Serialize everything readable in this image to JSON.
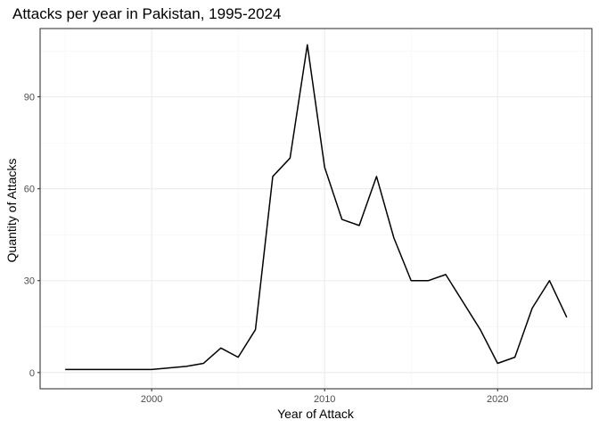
{
  "chart_data": {
    "type": "line",
    "title": "Attacks per year in Pakistan, 1995-2024",
    "xlabel": "Year of Attack",
    "ylabel": "Quantity of Attacks",
    "xlim": [
      1993.55,
      2025.45
    ],
    "ylim": [
      -5.3,
      112.3
    ],
    "x_ticks": [
      2000,
      2010,
      2020
    ],
    "y_ticks": [
      0,
      30,
      60,
      90
    ],
    "x_minor": [
      1995,
      2005,
      2015,
      2025
    ],
    "y_minor": [
      15,
      45,
      75,
      105
    ],
    "grid": true,
    "legend": "none",
    "line_color": "#000000",
    "x": [
      1995,
      1996,
      1997,
      1998,
      1999,
      2000,
      2001,
      2002,
      2003,
      2004,
      2005,
      2006,
      2007,
      2008,
      2009,
      2010,
      2011,
      2012,
      2013,
      2014,
      2015,
      2016,
      2017,
      2018,
      2019,
      2020,
      2021,
      2022,
      2023,
      2024
    ],
    "y": [
      1,
      1,
      1,
      1,
      1,
      1,
      1.5,
      2,
      3,
      8,
      5,
      14,
      64,
      70,
      107,
      67,
      50,
      48,
      64,
      44,
      30,
      30,
      32,
      23,
      14,
      3,
      5,
      21,
      30,
      18
    ]
  }
}
